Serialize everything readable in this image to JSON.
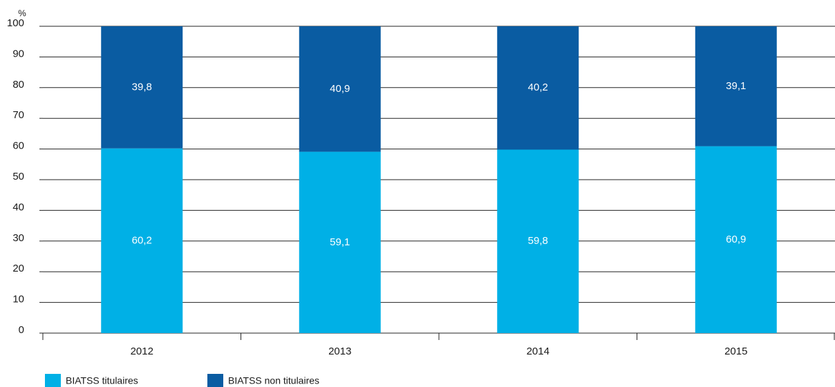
{
  "chart_data": {
    "type": "stacked_bar",
    "ylabel": "%",
    "categories": [
      "2012",
      "2013",
      "2014",
      "2015"
    ],
    "series": [
      {
        "name": "BIATSS titulaires",
        "color": "#00b0e6",
        "values": [
          60.2,
          59.1,
          59.8,
          60.9
        ],
        "value_labels": [
          "60,2",
          "59,1",
          "59,8",
          "60,9"
        ]
      },
      {
        "name": "BIATSS non titulaires",
        "color": "#0a5ca2",
        "values": [
          39.8,
          40.9,
          40.2,
          39.1
        ],
        "value_labels": [
          "39,8",
          "40,9",
          "40,2",
          "39,1"
        ]
      }
    ],
    "ylim": [
      0,
      100
    ],
    "yticks": [
      0,
      10,
      20,
      30,
      40,
      50,
      60,
      70,
      80,
      90,
      100
    ],
    "grid": true
  }
}
